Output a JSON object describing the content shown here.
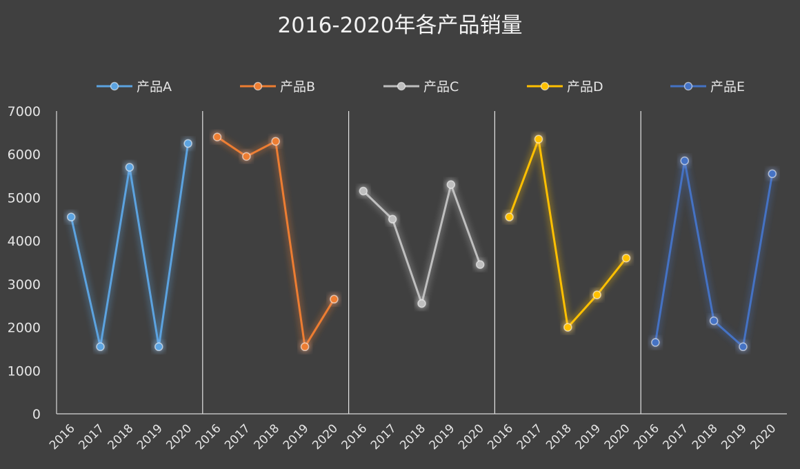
{
  "chart_data": {
    "type": "line",
    "title": "2016-2020年各产品销量",
    "xlabel": "",
    "ylabel": "",
    "ylim": [
      0,
      7000
    ],
    "yticks": [
      "0",
      "1000",
      "2000",
      "3000",
      "4000",
      "5000",
      "6000",
      "7000"
    ],
    "categories": [
      "2016",
      "2017",
      "2018",
      "2019",
      "2020"
    ],
    "legend_position": "top",
    "grid": false,
    "series": [
      {
        "name": "产品A",
        "color": "#5ba3e0",
        "values": [
          4550,
          1550,
          5700,
          1550,
          6250
        ]
      },
      {
        "name": "产品B",
        "color": "#ed7d31",
        "values": [
          6400,
          5950,
          6300,
          1550,
          2650
        ]
      },
      {
        "name": "产品C",
        "color": "#bfbfbf",
        "values": [
          5150,
          4500,
          2550,
          5300,
          3450
        ]
      },
      {
        "name": "产品D",
        "color": "#ffc000",
        "values": [
          4550,
          6350,
          2000,
          2750,
          3600
        ]
      },
      {
        "name": "产品E",
        "color": "#4472c4",
        "values": [
          1650,
          5850,
          2150,
          1550,
          5550
        ]
      }
    ]
  }
}
